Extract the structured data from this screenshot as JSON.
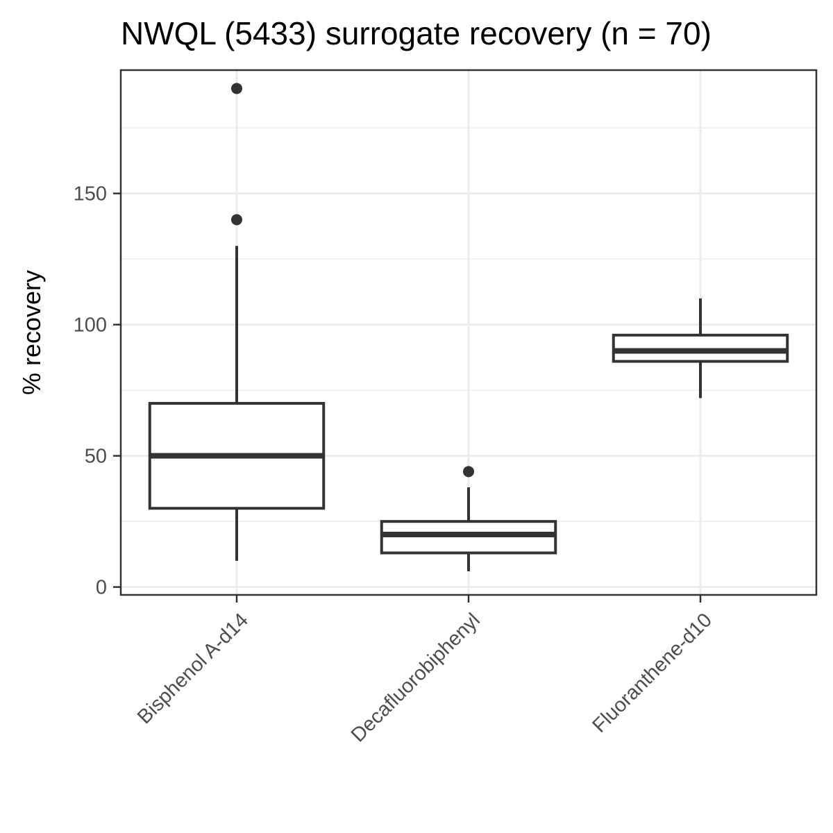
{
  "chart_data": {
    "type": "boxplot",
    "title": "NWQL (5433) surrogate recovery (n = 70)",
    "xlabel": "",
    "ylabel": "% recovery",
    "ylim": [
      -3,
      197
    ],
    "y_ticks": [
      0,
      50,
      100,
      150
    ],
    "y_tick_labels": [
      "0",
      "50",
      "100",
      "150"
    ],
    "y_minor_ticks": [
      25,
      75,
      125,
      175
    ],
    "grid": true,
    "categories": [
      "Bisphenol A-d14",
      "Decafluorobiphenyl",
      "Fluoranthene-d10"
    ],
    "boxes": [
      {
        "category": "Bisphenol A-d14",
        "whisker_low": 10,
        "q1": 30,
        "median": 50,
        "q3": 70,
        "whisker_high": 130,
        "outliers": [
          140,
          190
        ]
      },
      {
        "category": "Decafluorobiphenyl",
        "whisker_low": 6,
        "q1": 13,
        "median": 20,
        "q3": 25,
        "whisker_high": 38,
        "outliers": [
          44
        ]
      },
      {
        "category": "Fluoranthene-d10",
        "whisker_low": 72,
        "q1": 86,
        "median": 90,
        "q3": 96,
        "whisker_high": 110,
        "outliers": []
      }
    ],
    "colors": {
      "stroke": "#333333",
      "grid": "#ebebeb",
      "panel_border": "#333333",
      "tick_label": "#4d4d4d"
    }
  }
}
